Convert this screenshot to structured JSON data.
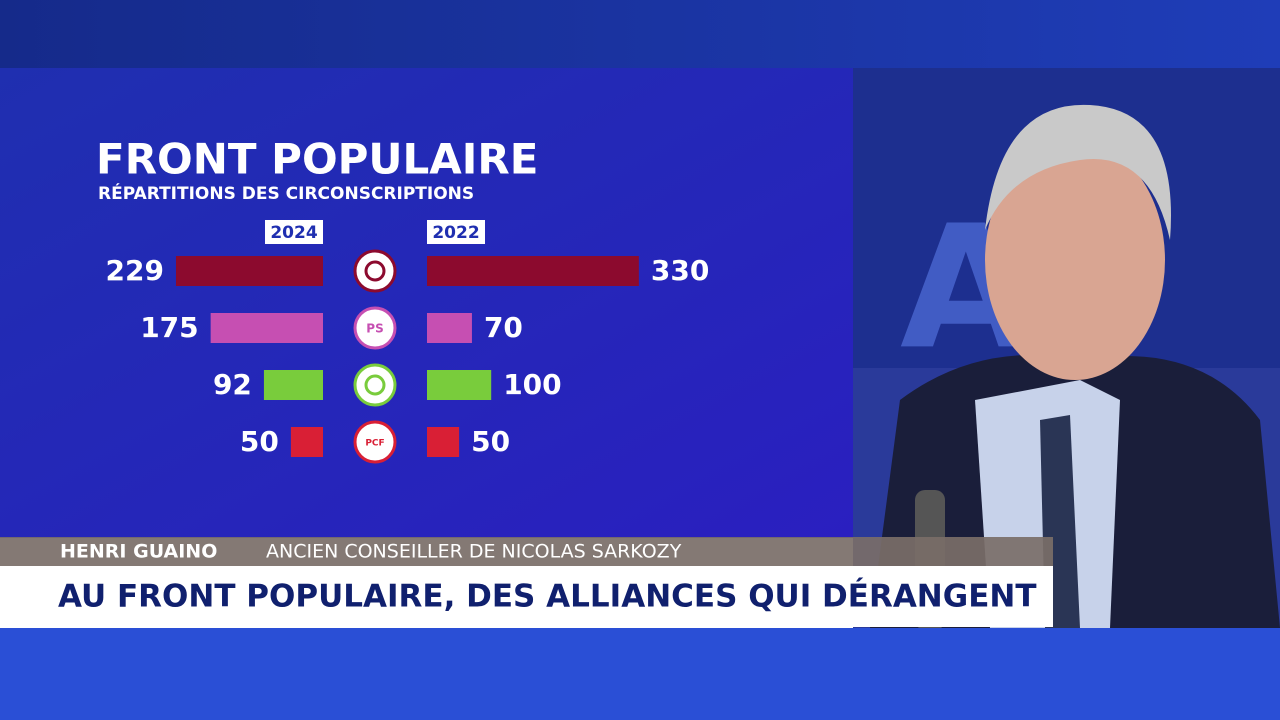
{
  "chart_data": {
    "type": "butterfly-bar",
    "title": "FRONT POPULAIRE",
    "subtitle": "RÉPARTITIONS DES CIRCONSCRIPTIONS",
    "categories": [
      null,
      "PS",
      null,
      "PCF"
    ],
    "colors": [
      "#8c0a2e",
      "#c64fb2",
      "#79cc3c",
      "#d91f35"
    ],
    "series": [
      {
        "name": "2024",
        "values": [
          229,
          175,
          92,
          50
        ]
      },
      {
        "name": "2022",
        "values": [
          330,
          70,
          100,
          50
        ]
      }
    ]
  },
  "lower_third": {
    "name": "HENRI GUAINO",
    "role": "ANCIEN CONSEILLER DE NICOLAS SARKOZY",
    "headline": "AU FRONT POPULAIRE, DES ALLIANCES QUI DÉRANGENT"
  }
}
